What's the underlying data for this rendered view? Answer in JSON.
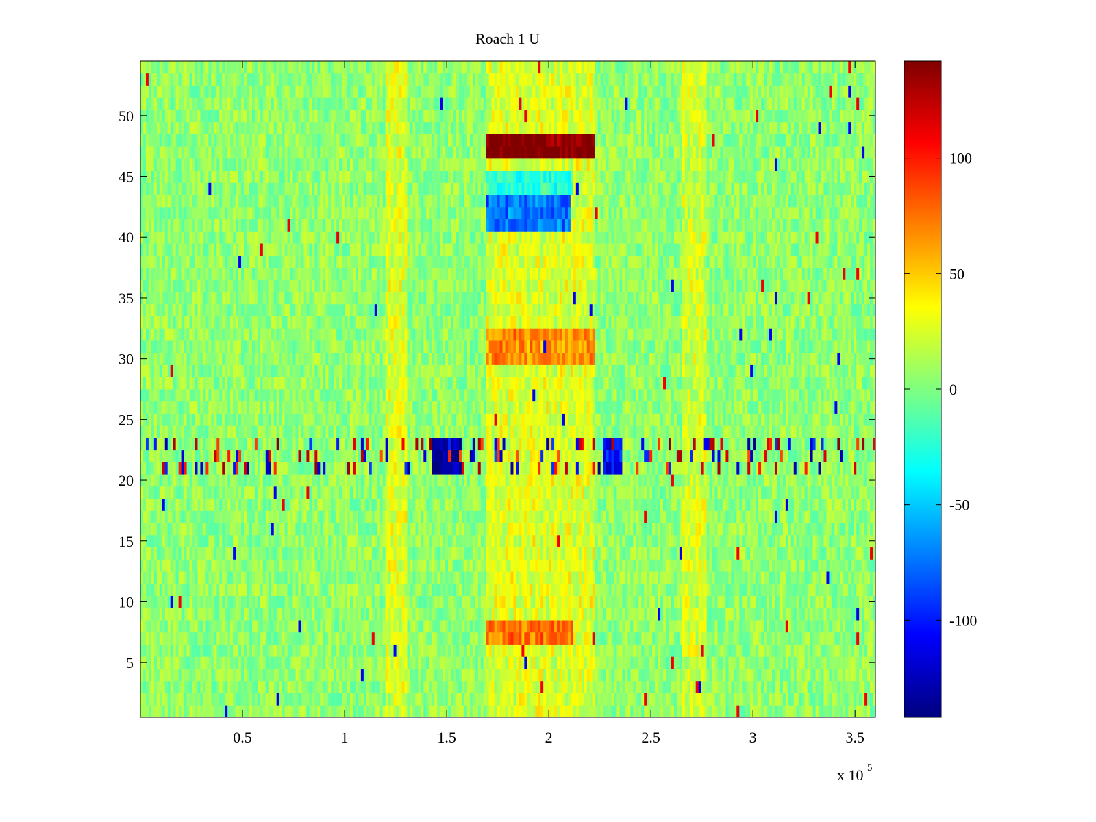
{
  "chart_data": {
    "type": "heatmap",
    "title": "Roach 1 U",
    "xlabel": "",
    "ylabel": "",
    "x_range": [
      0,
      360000
    ],
    "y_range": [
      1,
      54
    ],
    "x_ticks": [
      50000,
      100000,
      150000,
      200000,
      250000,
      300000,
      350000
    ],
    "x_tick_labels": [
      "0.5",
      "1",
      "1.5",
      "2",
      "2.5",
      "3",
      "3.5"
    ],
    "x_multiplier_label": "x 10",
    "x_multiplier_exponent": "5",
    "y_ticks": [
      5,
      10,
      15,
      20,
      25,
      30,
      35,
      40,
      45,
      50
    ],
    "y_tick_labels": [
      "5",
      "10",
      "15",
      "20",
      "25",
      "30",
      "35",
      "40",
      "45",
      "50"
    ],
    "colormap": "jet",
    "clim": [
      -142,
      142
    ],
    "colorbar": {
      "ticks": [
        -100,
        -50,
        0,
        50,
        100
      ],
      "tick_labels": [
        "-100",
        "-50",
        "0",
        "50",
        "100"
      ],
      "placement": "right"
    },
    "baseline_value": 5,
    "noise_amplitude": 18,
    "features": [
      {
        "description": "strong positive band",
        "rows": [
          47,
          48
        ],
        "x": [
          170000,
          222000
        ],
        "value": 125
      },
      {
        "description": "strong negative band",
        "rows": [
          41,
          42,
          43
        ],
        "x": [
          170000,
          210000
        ],
        "value": -95
      },
      {
        "description": "negative band",
        "rows": [
          44,
          45
        ],
        "x": [
          170000,
          212000
        ],
        "value": -45
      },
      {
        "description": "positive band",
        "rows": [
          30,
          31,
          32
        ],
        "x": [
          170000,
          222000
        ],
        "value": 45
      },
      {
        "description": "positive band",
        "rows": [
          7,
          8
        ],
        "x": [
          170000,
          212000
        ],
        "value": 55
      },
      {
        "description": "elevated region",
        "rows_range": [
          1,
          54
        ],
        "x": [
          170000,
          222000
        ],
        "value": 28
      },
      {
        "description": "elevated column",
        "rows_range": [
          1,
          54
        ],
        "x": [
          120000,
          130000
        ],
        "value": 28
      },
      {
        "description": "elevated column",
        "rows_range": [
          1,
          54
        ],
        "x": [
          265000,
          277000
        ],
        "value": 25
      },
      {
        "description": "strong negative block",
        "rows": [
          21,
          22,
          23
        ],
        "x": [
          143000,
          157000
        ],
        "value": -135
      },
      {
        "description": "negative block",
        "rows": [
          21,
          22,
          23
        ],
        "x": [
          227000,
          236000
        ],
        "value": -110
      }
    ],
    "spiky_rows": [
      21,
      22,
      23
    ],
    "spike_amplitude": 140
  }
}
